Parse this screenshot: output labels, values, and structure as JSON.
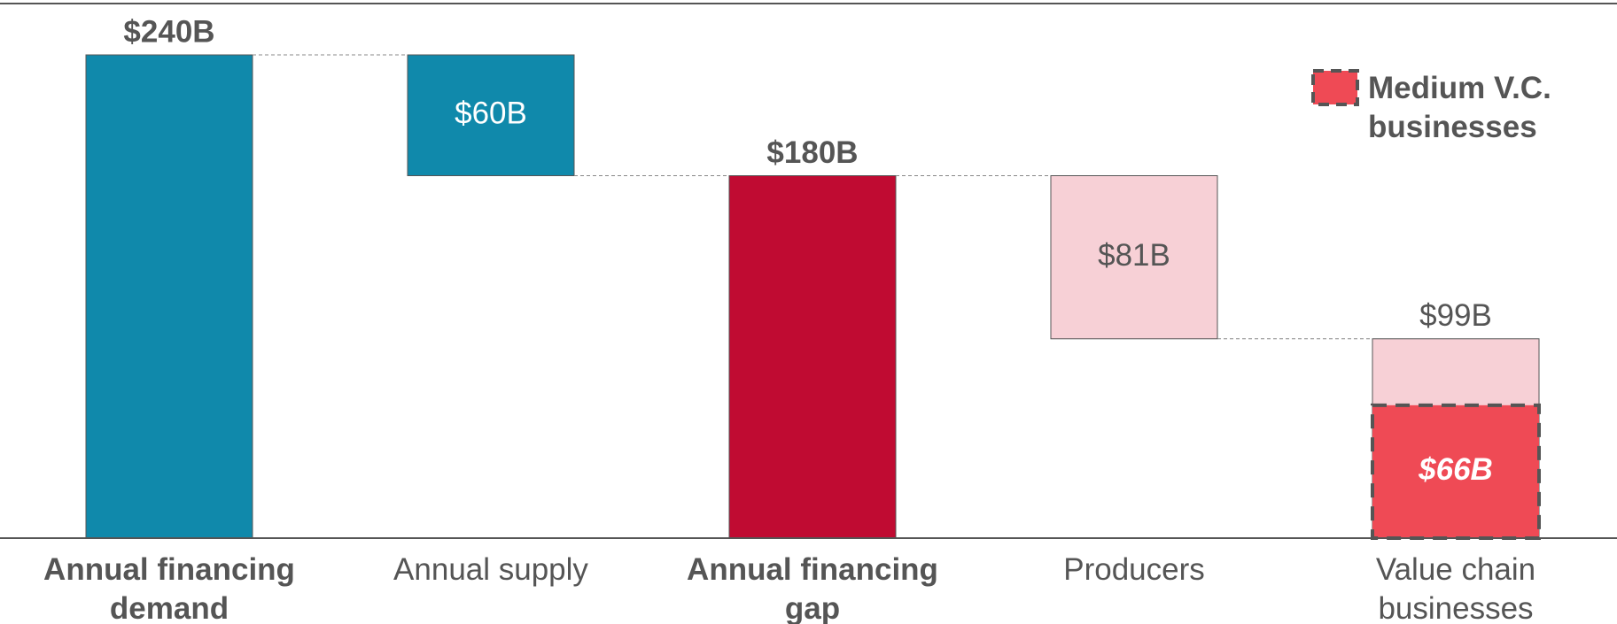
{
  "chart_data": {
    "type": "waterfall",
    "categories": [
      "Annual financing demand",
      "Annual supply",
      "Annual financing gap",
      "Producers",
      "Value chain businesses"
    ],
    "values": [
      240,
      60,
      180,
      81,
      99
    ],
    "value_labels": [
      "$240B",
      "$60B",
      "$180B",
      "$81B",
      "$99B"
    ],
    "colors": [
      "#1089ab",
      "#1089ab",
      "#c00b32",
      "#f7d0d6",
      "#f7d0d6"
    ],
    "series": [
      {
        "name": "Medium V.C. businesses",
        "color": "#ef4a55",
        "values": [
          null,
          null,
          null,
          null,
          66
        ],
        "value_labels": [
          null,
          null,
          null,
          null,
          "$66B"
        ]
      }
    ],
    "legend": "top-right"
  }
}
